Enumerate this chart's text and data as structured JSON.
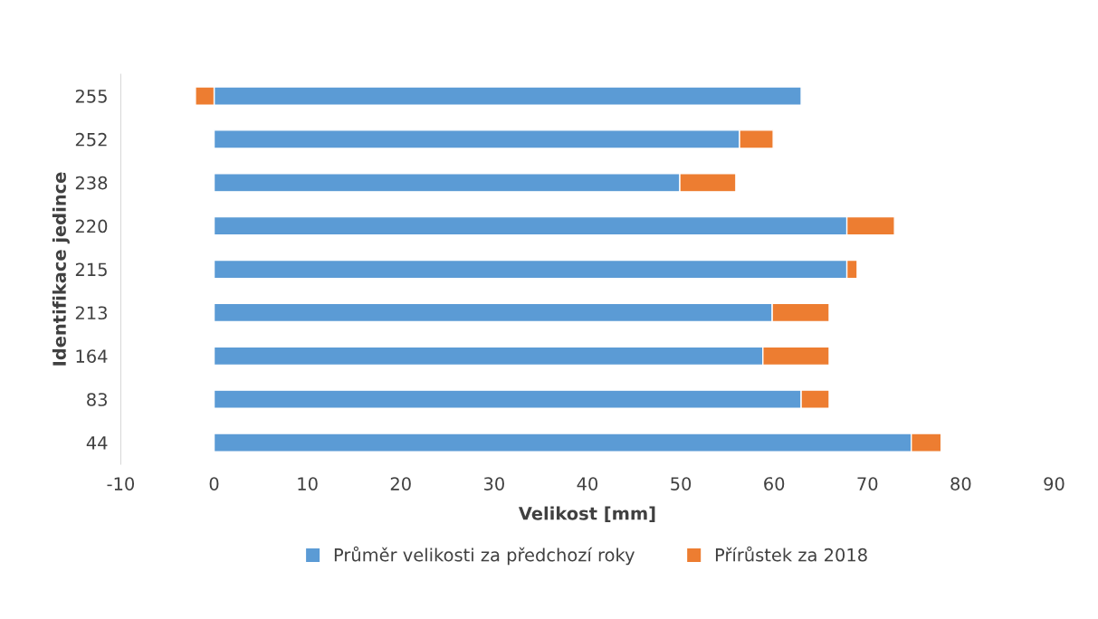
{
  "chart_data": {
    "type": "bar",
    "orientation": "horizontal",
    "stacked": true,
    "xlabel": "Velikost [mm]",
    "ylabel": "Identifikace jedince",
    "categories": [
      "255",
      "252",
      "238",
      "220",
      "215",
      "213",
      "164",
      "83",
      "44"
    ],
    "series": [
      {
        "name": "Průměr velikosti za předchozí roky",
        "color": "#5b9bd5",
        "values": [
          62.9,
          56.3,
          49.9,
          67.8,
          67.8,
          59.8,
          58.8,
          62.9,
          74.7
        ]
      },
      {
        "name": "Přírůstek za 2018",
        "color": "#ed7d31",
        "values": [
          -2.0,
          3.6,
          6.0,
          5.1,
          1.1,
          6.1,
          7.1,
          3.0,
          3.2
        ]
      }
    ],
    "xlim": [
      -10,
      90
    ],
    "xticks": [
      -10,
      0,
      10,
      20,
      30,
      40,
      50,
      60,
      70,
      80,
      90
    ],
    "grid": false,
    "legend": "bottom"
  }
}
